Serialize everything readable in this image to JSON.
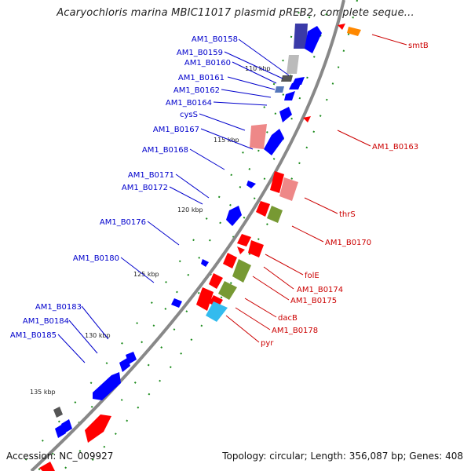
{
  "title": "Acaryochloris marina MBIC11017 plasmid pREB2, complete seque...",
  "footer": {
    "accession_label": "Accession:",
    "accession": "NC_009927",
    "topology_label": "Topology:",
    "topology": "circular",
    "length_label": "Length:",
    "length": "356,087 bp",
    "genes_label": "Genes:",
    "genes": "408"
  },
  "colors": {
    "left_strand_label": "#0000cc",
    "right_strand_label": "#cc0000",
    "backbone": "#888888"
  },
  "ticks": [
    "110 kbp",
    "115 kbp",
    "120 kbp",
    "125 kbp",
    "130 kbp",
    "135 kbp"
  ],
  "left_genes": [
    "AM1_B0158",
    "AM1_B0159",
    "AM1_B0160",
    "AM1_B0161",
    "AM1_B0162",
    "AM1_B0164",
    "cysS",
    "AM1_B0167",
    "AM1_B0168",
    "AM1_B0171",
    "AM1_B0172",
    "AM1_B0176",
    "AM1_B0180",
    "AM1_B0183",
    "AM1_B0184",
    "AM1_B0185"
  ],
  "right_genes": [
    "smtB",
    "AM1_B0163",
    "thrS",
    "AM1_B0170",
    "folE",
    "AM1_B0174",
    "AM1_B0175",
    "dacB",
    "AM1_B0178",
    "pyr"
  ]
}
